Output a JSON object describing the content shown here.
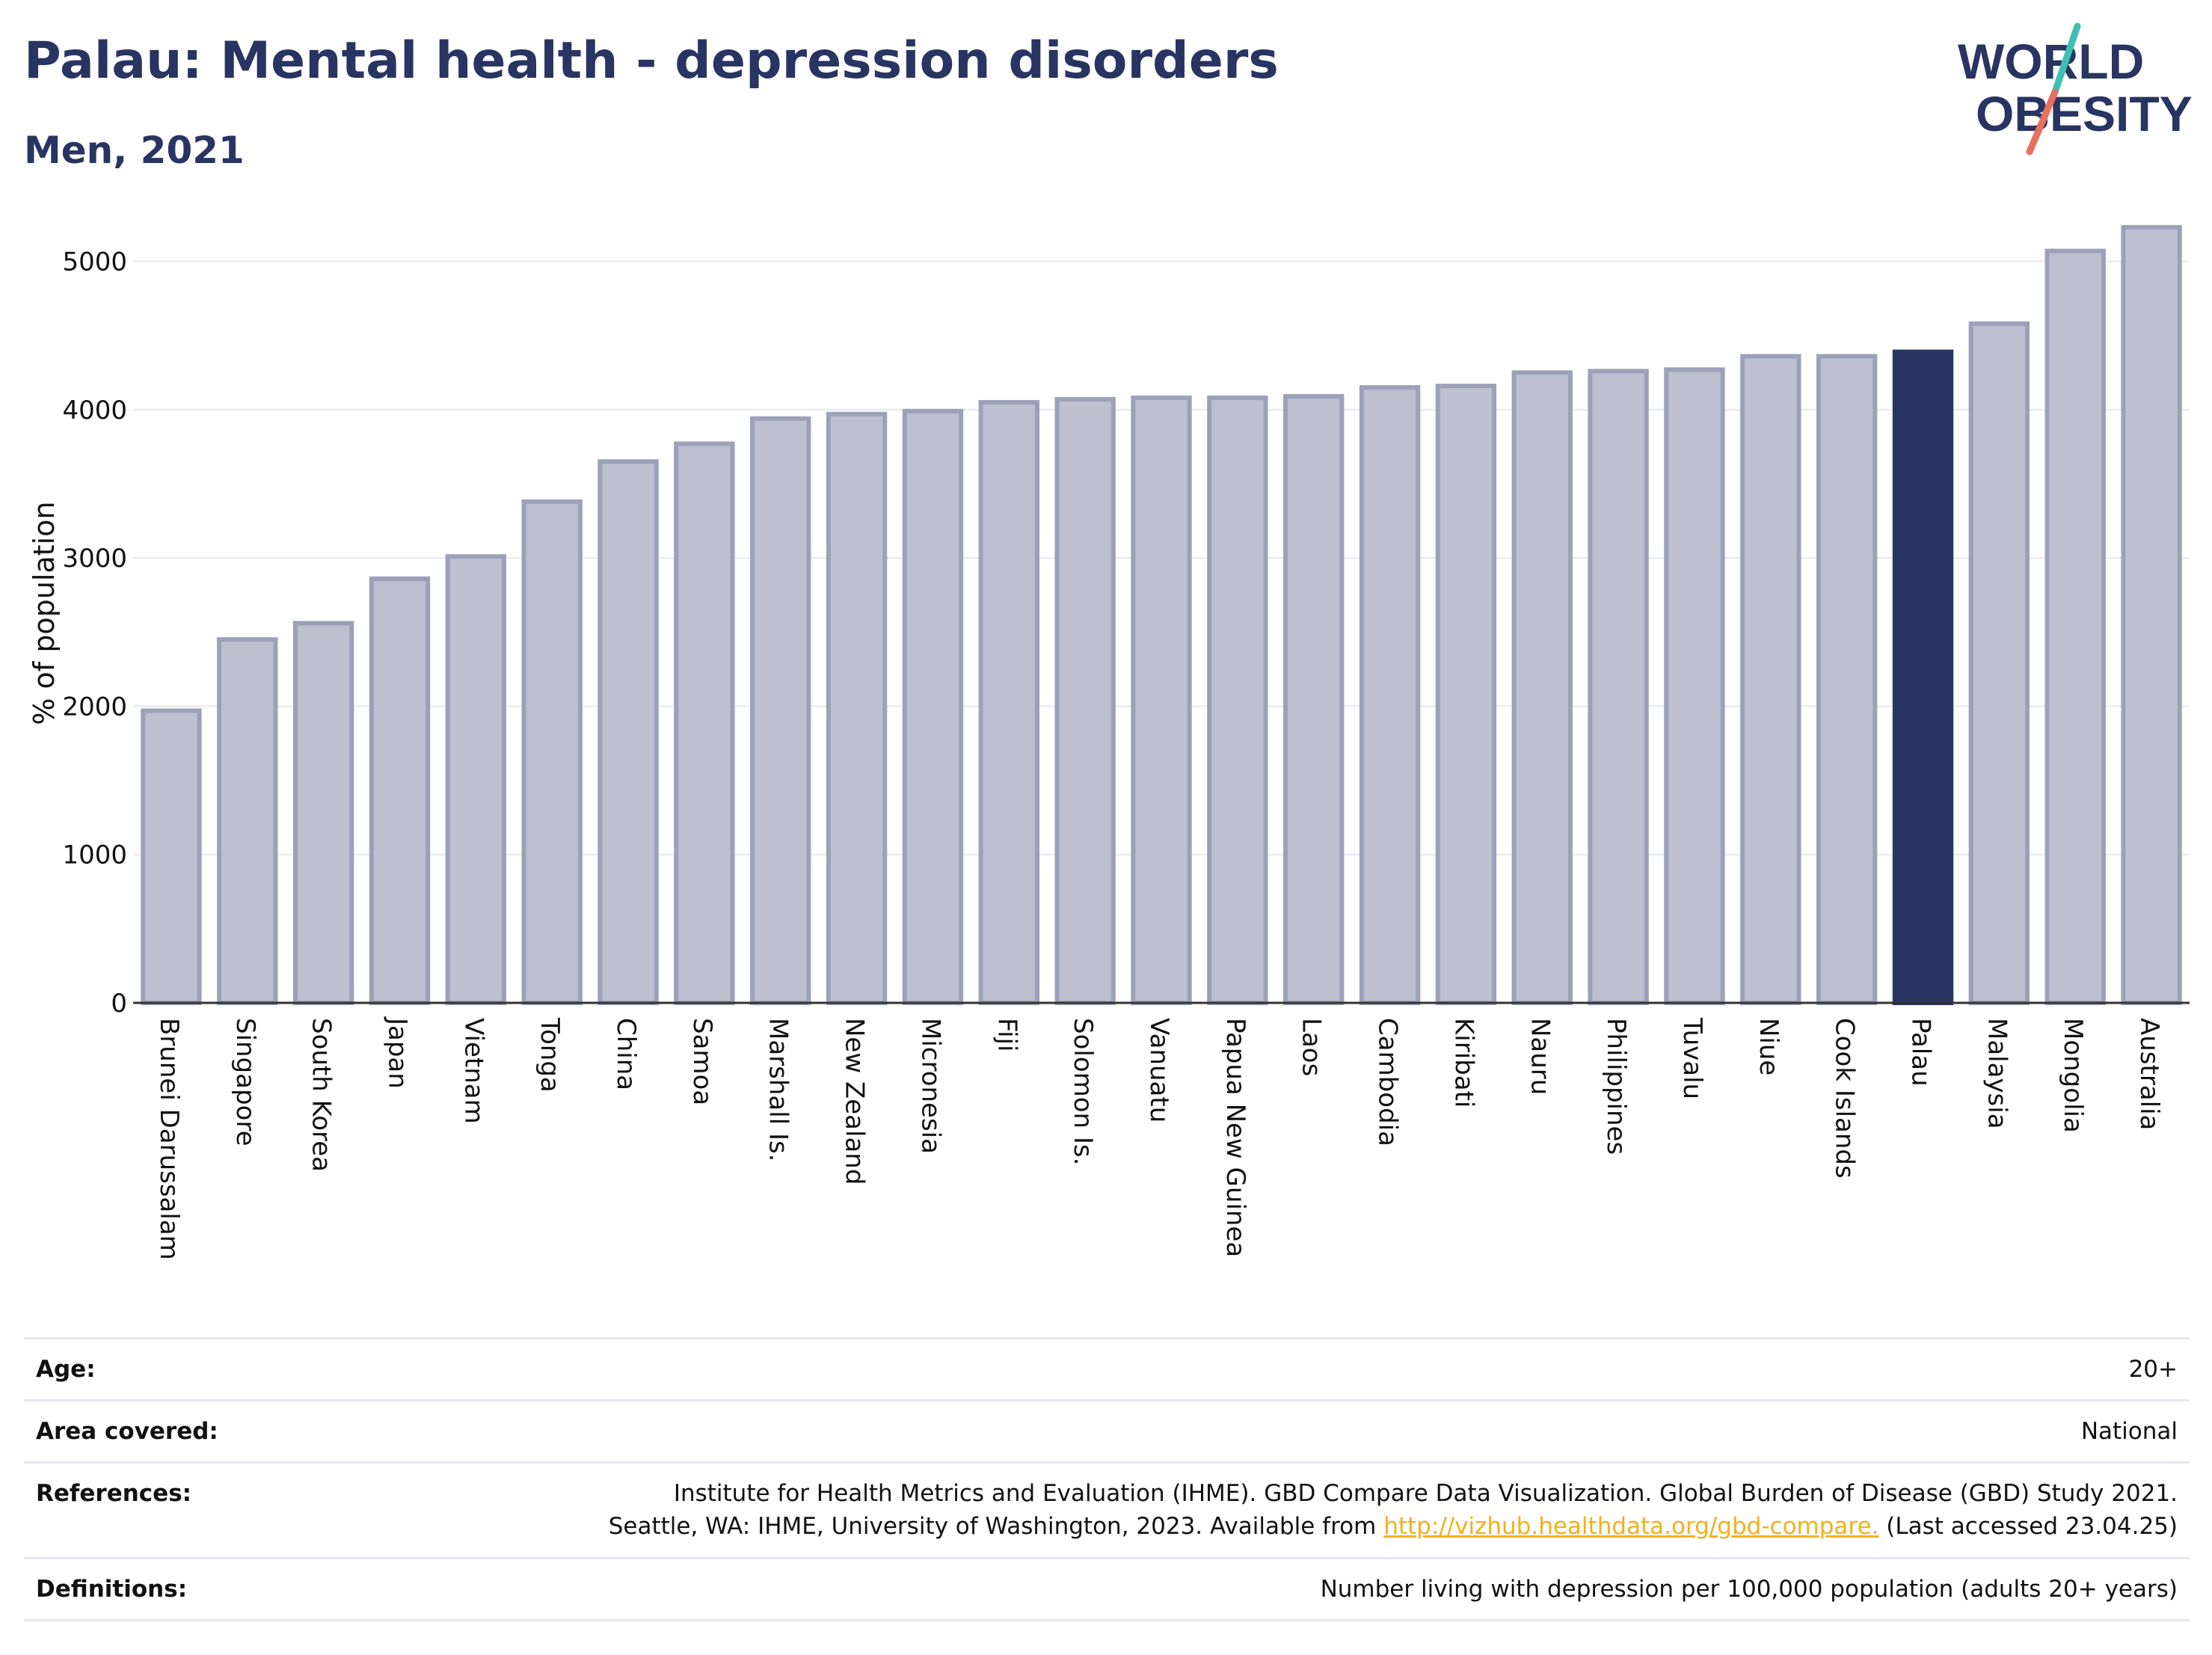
{
  "title": "Palau: Mental health - depression disorders",
  "subtitle": "Men, 2021",
  "logo": {
    "line1": "WORLD",
    "line2": "OBESITY",
    "colors": {
      "text": "#283462",
      "teal": "#3ebfb3",
      "coral": "#e8705f"
    }
  },
  "chart_data": {
    "type": "bar",
    "ylabel": "% of population",
    "ylim": [
      0,
      5300
    ],
    "yticks": [
      0,
      1000,
      2000,
      3000,
      4000,
      5000
    ],
    "grid": true,
    "highlight": "Palau",
    "colors": {
      "bar": "#bcc0cf",
      "bar_edge": "#9ba1b8",
      "highlight": "#283462"
    },
    "categories": [
      "Brunei Darussalam",
      "Singapore",
      "South Korea",
      "Japan",
      "Vietnam",
      "Tonga",
      "China",
      "Samoa",
      "Marshall Is.",
      "New Zealand",
      "Micronesia",
      "Fiji",
      "Solomon Is.",
      "Vanuatu",
      "Papua New Guinea",
      "Laos",
      "Cambodia",
      "Kiribati",
      "Nauru",
      "Philippines",
      "Tuvalu",
      "Niue",
      "Cook Islands",
      "Palau",
      "Malaysia",
      "Mongolia",
      "Australia"
    ],
    "values": [
      1970,
      2450,
      2560,
      2860,
      3010,
      3380,
      3650,
      3770,
      3940,
      3970,
      3990,
      4050,
      4070,
      4080,
      4080,
      4090,
      4150,
      4160,
      4250,
      4260,
      4270,
      4360,
      4360,
      4390,
      4580,
      5070,
      5230
    ]
  },
  "info": {
    "age_label": "Age:",
    "age_value": "20+",
    "area_label": "Area covered:",
    "area_value": "National",
    "references_label": "References:",
    "references_line1": "Institute for Health Metrics and Evaluation (IHME). GBD Compare Data Visualization. Global Burden of Disease (GBD) Study 2021.",
    "references_line2_pre": "Seattle, WA: IHME, University of Washington, 2023. Available from",
    "references_link": "http://vizhub.healthdata.org/gbd-compare.",
    "references_line2_post": "(Last accessed 23.04.25)",
    "definitions_label": "Definitions:",
    "definitions_value": "Number living with depression per 100,000 population (adults 20+ years)"
  }
}
